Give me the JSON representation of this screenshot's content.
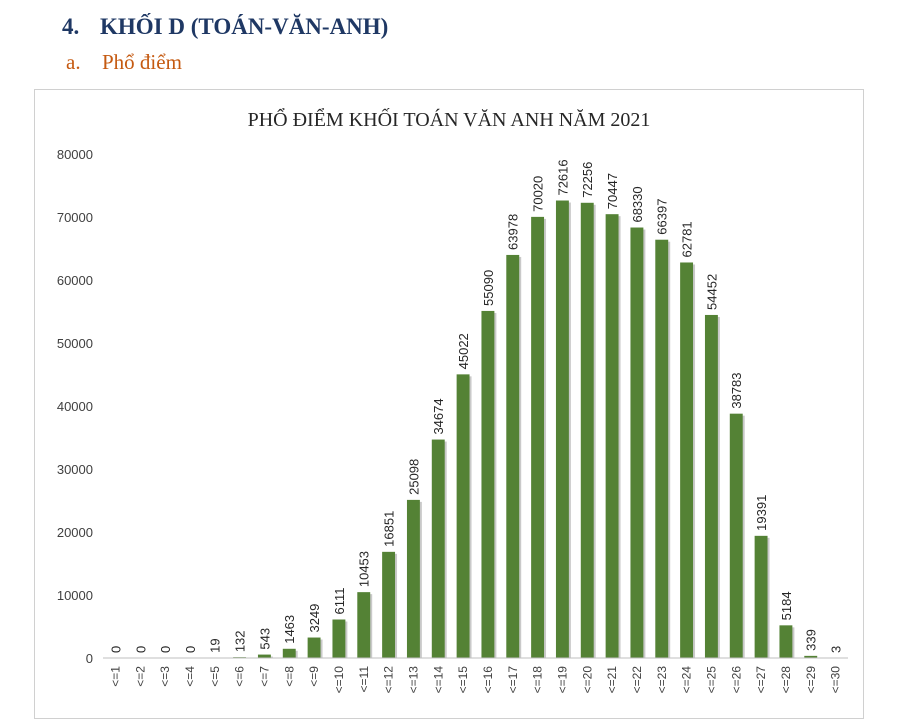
{
  "heading": {
    "number": "4.",
    "text": "KHỐI D (TOÁN-VĂN-ANH)"
  },
  "subheading": {
    "number": "a.",
    "text": "Phổ điểm"
  },
  "colors": {
    "bar": "#548235",
    "bar_shade": "#3d6126",
    "axis": "#bfbfbf",
    "text": "#404040"
  },
  "chart_data": {
    "type": "bar",
    "title": "PHỔ ĐIỂM KHỐI TOÁN VĂN ANH NĂM 2021",
    "xlabel": "",
    "ylabel": "",
    "ylim": [
      0,
      80000
    ],
    "yticks": [
      0,
      10000,
      20000,
      30000,
      40000,
      50000,
      60000,
      70000,
      80000
    ],
    "grid": false,
    "categories": [
      "<=1",
      "<=2",
      "<=3",
      "<=4",
      "<=5",
      "<=6",
      "<=7",
      "<=8",
      "<=9",
      "<=10",
      "<=11",
      "<=12",
      "<=13",
      "<=14",
      "<=15",
      "<=16",
      "<=17",
      "<=18",
      "<=19",
      "<=20",
      "<=21",
      "<=22",
      "<=23",
      "<=24",
      "<=25",
      "<=26",
      "<=27",
      "<=28",
      "<=29",
      "<=30"
    ],
    "values": [
      0,
      0,
      0,
      0,
      19,
      132,
      543,
      1463,
      3249,
      6111,
      10453,
      16851,
      25098,
      34674,
      45022,
      55090,
      63978,
      70020,
      72616,
      72256,
      70447,
      68330,
      66397,
      62781,
      54452,
      38783,
      19391,
      5184,
      339,
      3
    ]
  }
}
